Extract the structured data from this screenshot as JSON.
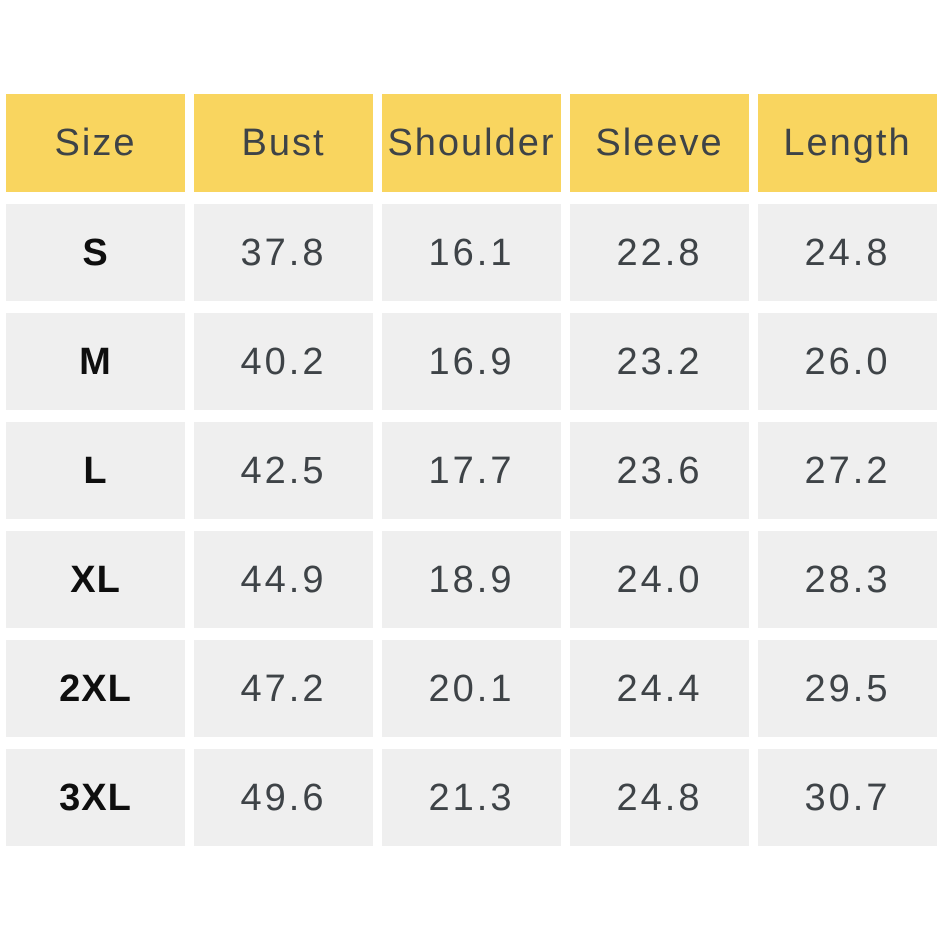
{
  "size_chart": {
    "columns": [
      "Size",
      "Bust",
      "Shoulder",
      "Sleeve",
      "Length"
    ],
    "rows": [
      {
        "size": "S",
        "bust": "37.8",
        "shoulder": "16.1",
        "sleeve": "22.8",
        "length": "24.8"
      },
      {
        "size": "M",
        "bust": "40.2",
        "shoulder": "16.9",
        "sleeve": "23.2",
        "length": "26.0"
      },
      {
        "size": "L",
        "bust": "42.5",
        "shoulder": "17.7",
        "sleeve": "23.6",
        "length": "27.2"
      },
      {
        "size": "XL",
        "bust": "44.9",
        "shoulder": "18.9",
        "sleeve": "24.0",
        "length": "28.3"
      },
      {
        "size": "2XL",
        "bust": "47.2",
        "shoulder": "20.1",
        "sleeve": "24.4",
        "length": "29.5"
      },
      {
        "size": "3XL",
        "bust": "49.6",
        "shoulder": "21.3",
        "sleeve": "24.8",
        "length": "30.7"
      }
    ],
    "colors": {
      "header_background": "#F9D55F",
      "cell_background": "#EFEFEF",
      "header_text": "#3E4347",
      "value_text": "#3E4347",
      "size_label_text": "#0E0E0E",
      "page_background": "#FFFFFF"
    }
  },
  "chart_data": {
    "type": "table",
    "columns": [
      "Size",
      "Bust",
      "Shoulder",
      "Sleeve",
      "Length"
    ],
    "rows": [
      [
        "S",
        37.8,
        16.1,
        22.8,
        24.8
      ],
      [
        "M",
        40.2,
        16.9,
        23.2,
        26.0
      ],
      [
        "L",
        42.5,
        17.7,
        23.6,
        27.2
      ],
      [
        "XL",
        44.9,
        18.9,
        24.0,
        28.3
      ],
      [
        "2XL",
        47.2,
        20.1,
        24.4,
        29.5
      ],
      [
        "3XL",
        49.6,
        21.3,
        24.8,
        30.7
      ]
    ],
    "title": "",
    "layout_hints": {
      "header_row_highlighted": true,
      "grid": "white gaps between cells",
      "alignment": "center"
    }
  }
}
